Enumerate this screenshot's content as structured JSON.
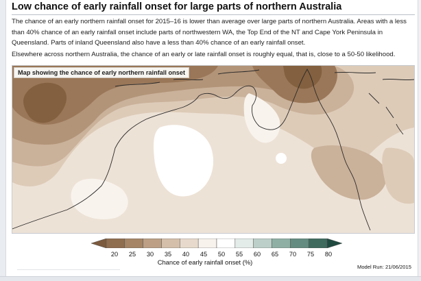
{
  "title": "Low chance of early rainfall onset for large parts of northern Australia",
  "paragraphs": [
    "The chance of an early northern rainfall onset for 2015–16 is lower than average over large parts of northern Australia. Areas with a less than 40% chance of an early rainfall onset include parts of northwestern WA, the Top End of the NT and Cape York Peninsula in Queensland. Parts of inland Queensland also have a less than 40% chance of an early rainfall onset.",
    "Elsewhere across northern Australia, the chance of an early or late rainfall onset is roughly equal, that is, close to a 50-50 likelihood."
  ],
  "map": {
    "caption": "Map showing the chance of early northern rainfall onset",
    "shading_palette": [
      "#83603f",
      "#9a7758",
      "#b29478",
      "#cab19a",
      "#ddcbb8",
      "#ede2d6",
      "#f8f3ed",
      "#ffffff"
    ]
  },
  "legend": {
    "ticks": [
      "20",
      "25",
      "30",
      "35",
      "40",
      "45",
      "50",
      "55",
      "60",
      "65",
      "70",
      "75",
      "80"
    ],
    "title": "Chance of early rainfall onset (%)",
    "colors": [
      "#7b5a3e",
      "#8f6d4f",
      "#a58566",
      "#bc9f85",
      "#d3bfaa",
      "#e7dacc",
      "#f7f2ec",
      "#ffffff",
      "#e3ece8",
      "#bccfc8",
      "#8fafa4",
      "#648c80",
      "#3f6b5f",
      "#204a40"
    ]
  },
  "model_run": "Model Run: 21/06/2015"
}
